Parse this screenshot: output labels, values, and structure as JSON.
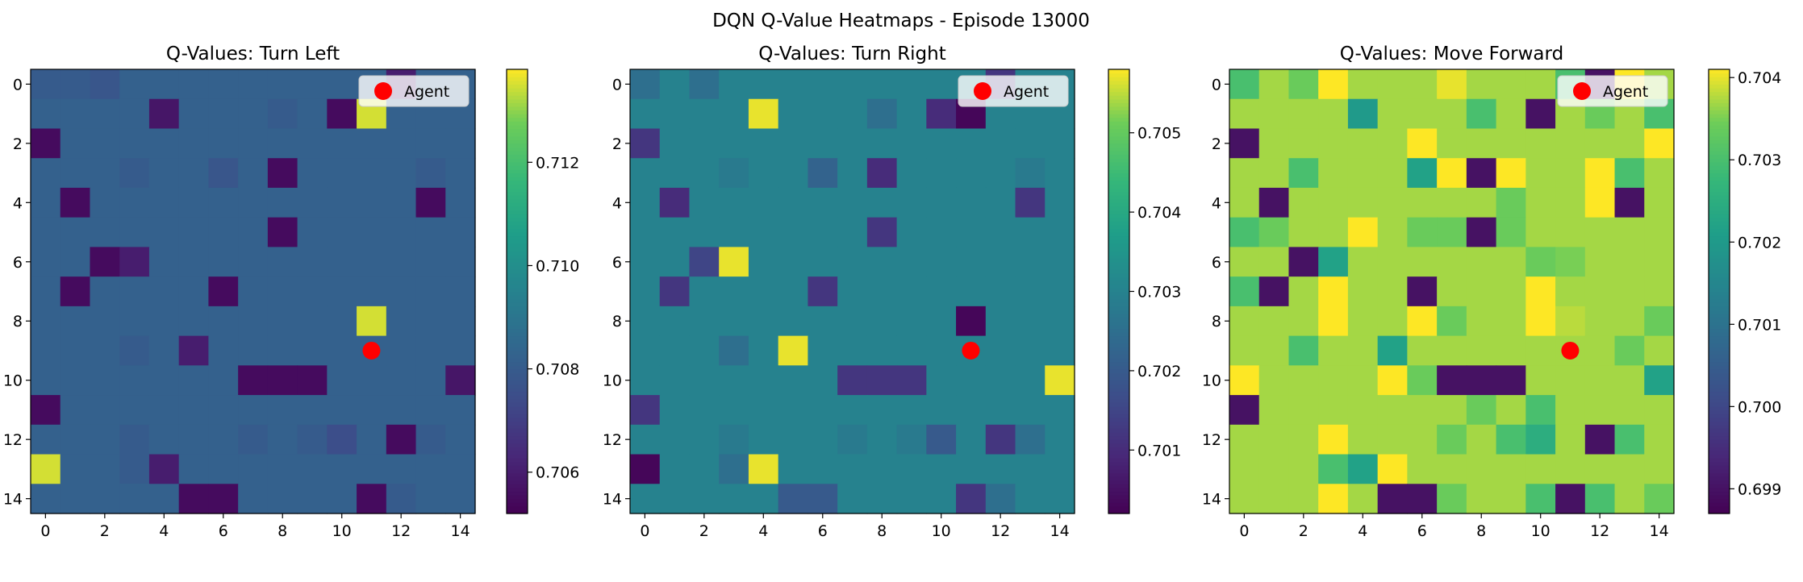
{
  "title": "DQN Q-Value Heatmaps - Episode 13000",
  "chart_data": [
    {
      "type": "heatmap",
      "title": "Q-Values: Turn Left",
      "legend": {
        "entry": "Agent",
        "placement": "top-right"
      },
      "agent": {
        "x": 11,
        "y": 9
      },
      "x_ticks": [
        "0",
        "2",
        "4",
        "6",
        "8",
        "10",
        "12",
        "14"
      ],
      "y_ticks": [
        "0",
        "2",
        "4",
        "6",
        "8",
        "10",
        "12",
        "14"
      ],
      "colorbar_ticks": [
        "0.706",
        "0.708",
        "0.710",
        "0.712"
      ],
      "colorbar_tick_values": [
        0.706,
        0.708,
        0.71,
        0.712
      ],
      "vmin": 0.7052,
      "vmax": 0.7138,
      "values": [
        [
          0.708,
          0.708,
          0.7078,
          0.7082,
          0.7082,
          0.7082,
          0.7082,
          0.7082,
          0.7082,
          0.7082,
          0.7082,
          0.7082,
          0.706,
          0.7082,
          0.7082
        ],
        [
          0.7082,
          0.7082,
          0.7082,
          0.7082,
          0.7058,
          0.7082,
          0.7082,
          0.7082,
          0.708,
          0.7082,
          0.7055,
          0.7135,
          0.7082,
          0.7082,
          0.7082
        ],
        [
          0.7055,
          0.7082,
          0.7082,
          0.7082,
          0.7082,
          0.7082,
          0.7082,
          0.7082,
          0.7082,
          0.7082,
          0.7082,
          0.7082,
          0.7082,
          0.7082,
          0.7082
        ],
        [
          0.7082,
          0.7082,
          0.7082,
          0.708,
          0.7082,
          0.7082,
          0.7078,
          0.7082,
          0.7055,
          0.7082,
          0.7082,
          0.7082,
          0.7082,
          0.708,
          0.7082
        ],
        [
          0.7082,
          0.7055,
          0.7082,
          0.7082,
          0.7082,
          0.7082,
          0.7082,
          0.7082,
          0.7082,
          0.7082,
          0.7082,
          0.7082,
          0.7082,
          0.7055,
          0.7082
        ],
        [
          0.7082,
          0.7082,
          0.7082,
          0.7082,
          0.7082,
          0.7082,
          0.7082,
          0.7082,
          0.7055,
          0.7082,
          0.7082,
          0.7082,
          0.7082,
          0.7082,
          0.7082
        ],
        [
          0.7082,
          0.7082,
          0.7055,
          0.706,
          0.7082,
          0.7082,
          0.7082,
          0.7082,
          0.7082,
          0.7082,
          0.7082,
          0.7082,
          0.7082,
          0.7082,
          0.7082
        ],
        [
          0.7082,
          0.7055,
          0.7082,
          0.7082,
          0.7082,
          0.7082,
          0.7055,
          0.7082,
          0.7082,
          0.7082,
          0.7082,
          0.7082,
          0.7082,
          0.7082,
          0.7082
        ],
        [
          0.7082,
          0.7082,
          0.7082,
          0.7082,
          0.7082,
          0.7082,
          0.7082,
          0.7082,
          0.7082,
          0.7082,
          0.7082,
          0.7135,
          0.7082,
          0.7082,
          0.7082
        ],
        [
          0.7082,
          0.7082,
          0.7082,
          0.708,
          0.7082,
          0.706,
          0.7082,
          0.7082,
          0.7082,
          0.7082,
          0.7082,
          0.7082,
          0.7082,
          0.7082,
          0.7082
        ],
        [
          0.7082,
          0.7082,
          0.7082,
          0.7082,
          0.7082,
          0.7082,
          0.7082,
          0.7055,
          0.7055,
          0.7055,
          0.7082,
          0.7082,
          0.7082,
          0.7082,
          0.7058
        ],
        [
          0.7055,
          0.7082,
          0.7082,
          0.7082,
          0.7082,
          0.7082,
          0.7082,
          0.7082,
          0.7082,
          0.7082,
          0.7082,
          0.7082,
          0.7082,
          0.7082,
          0.7082
        ],
        [
          0.7082,
          0.7082,
          0.7082,
          0.708,
          0.7082,
          0.7082,
          0.7082,
          0.708,
          0.7082,
          0.708,
          0.7075,
          0.7082,
          0.7055,
          0.708,
          0.7082
        ],
        [
          0.7135,
          0.7082,
          0.7082,
          0.708,
          0.706,
          0.7082,
          0.7082,
          0.7082,
          0.7082,
          0.7082,
          0.7082,
          0.7082,
          0.7082,
          0.7082,
          0.7082
        ],
        [
          0.7082,
          0.7082,
          0.7082,
          0.7082,
          0.7082,
          0.7055,
          0.7055,
          0.7082,
          0.7082,
          0.7082,
          0.7082,
          0.7055,
          0.708,
          0.7082,
          0.7082
        ]
      ]
    },
    {
      "type": "heatmap",
      "title": "Q-Values: Turn Right",
      "legend": {
        "entry": "Agent",
        "placement": "top-right"
      },
      "agent": {
        "x": 11,
        "y": 9
      },
      "x_ticks": [
        "0",
        "2",
        "4",
        "6",
        "8",
        "10",
        "12",
        "14"
      ],
      "y_ticks": [
        "0",
        "2",
        "4",
        "6",
        "8",
        "10",
        "12",
        "14"
      ],
      "colorbar_ticks": [
        "0.701",
        "0.702",
        "0.703",
        "0.704",
        "0.705"
      ],
      "colorbar_tick_values": [
        0.701,
        0.702,
        0.703,
        0.704,
        0.705
      ],
      "vmin": 0.7002,
      "vmax": 0.7058,
      "values": [
        [
          0.7025,
          0.703,
          0.7025,
          0.703,
          0.703,
          0.703,
          0.703,
          0.703,
          0.703,
          0.703,
          0.703,
          0.703,
          0.7012,
          0.703,
          0.703
        ],
        [
          0.703,
          0.703,
          0.703,
          0.703,
          0.7057,
          0.703,
          0.703,
          0.703,
          0.7025,
          0.703,
          0.701,
          0.7003,
          0.703,
          0.703,
          0.703
        ],
        [
          0.7012,
          0.703,
          0.703,
          0.703,
          0.703,
          0.703,
          0.703,
          0.703,
          0.703,
          0.703,
          0.703,
          0.703,
          0.703,
          0.703,
          0.703
        ],
        [
          0.703,
          0.703,
          0.703,
          0.7028,
          0.703,
          0.703,
          0.7022,
          0.703,
          0.701,
          0.703,
          0.703,
          0.703,
          0.703,
          0.7028,
          0.703
        ],
        [
          0.703,
          0.701,
          0.703,
          0.703,
          0.703,
          0.703,
          0.703,
          0.703,
          0.703,
          0.703,
          0.703,
          0.703,
          0.703,
          0.7012,
          0.703
        ],
        [
          0.703,
          0.703,
          0.703,
          0.703,
          0.703,
          0.703,
          0.703,
          0.703,
          0.7012,
          0.703,
          0.703,
          0.703,
          0.703,
          0.703,
          0.703
        ],
        [
          0.703,
          0.703,
          0.7015,
          0.7057,
          0.703,
          0.703,
          0.703,
          0.703,
          0.703,
          0.703,
          0.703,
          0.703,
          0.703,
          0.703,
          0.703
        ],
        [
          0.703,
          0.7012,
          0.703,
          0.703,
          0.703,
          0.703,
          0.7012,
          0.703,
          0.703,
          0.703,
          0.703,
          0.703,
          0.703,
          0.703,
          0.703
        ],
        [
          0.703,
          0.703,
          0.703,
          0.703,
          0.703,
          0.703,
          0.703,
          0.703,
          0.703,
          0.703,
          0.703,
          0.7003,
          0.703,
          0.703,
          0.703
        ],
        [
          0.703,
          0.703,
          0.703,
          0.7025,
          0.703,
          0.7057,
          0.703,
          0.703,
          0.703,
          0.703,
          0.703,
          0.703,
          0.703,
          0.703,
          0.703
        ],
        [
          0.703,
          0.703,
          0.703,
          0.703,
          0.703,
          0.703,
          0.703,
          0.7012,
          0.7012,
          0.7012,
          0.703,
          0.703,
          0.703,
          0.703,
          0.7057
        ],
        [
          0.7012,
          0.703,
          0.703,
          0.703,
          0.703,
          0.703,
          0.703,
          0.703,
          0.703,
          0.703,
          0.703,
          0.703,
          0.703,
          0.703,
          0.703
        ],
        [
          0.703,
          0.703,
          0.703,
          0.7028,
          0.703,
          0.703,
          0.703,
          0.7028,
          0.703,
          0.7028,
          0.702,
          0.703,
          0.7012,
          0.7025,
          0.703
        ],
        [
          0.7003,
          0.703,
          0.703,
          0.7025,
          0.7057,
          0.703,
          0.703,
          0.703,
          0.703,
          0.703,
          0.703,
          0.703,
          0.703,
          0.703,
          0.703
        ],
        [
          0.703,
          0.703,
          0.703,
          0.703,
          0.703,
          0.702,
          0.702,
          0.703,
          0.703,
          0.703,
          0.703,
          0.7012,
          0.7025,
          0.703,
          0.703
        ]
      ]
    },
    {
      "type": "heatmap",
      "title": "Q-Values: Move Forward",
      "legend": {
        "entry": "Agent",
        "placement": "top-right"
      },
      "agent": {
        "x": 11,
        "y": 9
      },
      "x_ticks": [
        "0",
        "2",
        "4",
        "6",
        "8",
        "10",
        "12",
        "14"
      ],
      "y_ticks": [
        "0",
        "2",
        "4",
        "6",
        "8",
        "10",
        "12",
        "14"
      ],
      "colorbar_ticks": [
        "0.699",
        "0.700",
        "0.701",
        "0.702",
        "0.703",
        "0.704"
      ],
      "colorbar_tick_values": [
        0.699,
        0.7,
        0.701,
        0.702,
        0.703,
        0.704
      ],
      "vmin": 0.6987,
      "vmax": 0.7041,
      "values": [
        [
          0.703,
          0.7037,
          0.7034,
          0.7041,
          0.7037,
          0.7037,
          0.7037,
          0.704,
          0.7037,
          0.7037,
          0.7037,
          0.703,
          0.699,
          0.7041,
          0.7037
        ],
        [
          0.7037,
          0.7037,
          0.7037,
          0.7037,
          0.702,
          0.7037,
          0.7037,
          0.7037,
          0.703,
          0.7037,
          0.699,
          0.7037,
          0.7034,
          0.7037,
          0.703
        ],
        [
          0.699,
          0.7037,
          0.7037,
          0.7037,
          0.7037,
          0.7037,
          0.7041,
          0.7037,
          0.7037,
          0.7037,
          0.7037,
          0.7037,
          0.7037,
          0.7037,
          0.7041
        ],
        [
          0.7037,
          0.7037,
          0.703,
          0.7037,
          0.7037,
          0.7037,
          0.7022,
          0.7041,
          0.699,
          0.7041,
          0.7037,
          0.7037,
          0.7041,
          0.703,
          0.7037
        ],
        [
          0.7037,
          0.699,
          0.7037,
          0.7037,
          0.7037,
          0.7037,
          0.7037,
          0.7037,
          0.7037,
          0.7034,
          0.7037,
          0.7037,
          0.7041,
          0.699,
          0.7037
        ],
        [
          0.703,
          0.7034,
          0.7037,
          0.7037,
          0.7041,
          0.7037,
          0.7034,
          0.7034,
          0.699,
          0.7034,
          0.7037,
          0.7037,
          0.7037,
          0.7037,
          0.7037
        ],
        [
          0.7037,
          0.7037,
          0.699,
          0.7022,
          0.7037,
          0.7037,
          0.7037,
          0.7037,
          0.7037,
          0.7037,
          0.7034,
          0.7035,
          0.7037,
          0.7037,
          0.7037
        ],
        [
          0.703,
          0.699,
          0.7037,
          0.7041,
          0.7037,
          0.7037,
          0.699,
          0.7037,
          0.7037,
          0.7037,
          0.7041,
          0.7037,
          0.7037,
          0.7037,
          0.7037
        ],
        [
          0.7037,
          0.7037,
          0.7037,
          0.7041,
          0.7037,
          0.7037,
          0.7041,
          0.7034,
          0.7037,
          0.7037,
          0.7041,
          0.7038,
          0.7037,
          0.7037,
          0.7034
        ],
        [
          0.7037,
          0.7037,
          0.703,
          0.7037,
          0.7037,
          0.7022,
          0.7037,
          0.7037,
          0.7037,
          0.7037,
          0.7037,
          0.7037,
          0.7037,
          0.7034,
          0.7037
        ],
        [
          0.7041,
          0.7037,
          0.7037,
          0.7037,
          0.7037,
          0.7041,
          0.7034,
          0.699,
          0.699,
          0.699,
          0.7037,
          0.7037,
          0.7037,
          0.7037,
          0.7022
        ],
        [
          0.699,
          0.7037,
          0.7037,
          0.7037,
          0.7037,
          0.7037,
          0.7037,
          0.7037,
          0.7034,
          0.7037,
          0.703,
          0.7037,
          0.7037,
          0.7037,
          0.7037
        ],
        [
          0.7037,
          0.7037,
          0.7037,
          0.7041,
          0.7037,
          0.7037,
          0.7037,
          0.7034,
          0.7037,
          0.703,
          0.7025,
          0.7037,
          0.699,
          0.703,
          0.7037
        ],
        [
          0.7037,
          0.7037,
          0.7037,
          0.703,
          0.7022,
          0.7041,
          0.7037,
          0.7037,
          0.7037,
          0.7037,
          0.7037,
          0.7037,
          0.7037,
          0.7037,
          0.7037
        ],
        [
          0.7037,
          0.7037,
          0.7037,
          0.7041,
          0.7037,
          0.699,
          0.699,
          0.7034,
          0.7037,
          0.7037,
          0.703,
          0.699,
          0.703,
          0.7037,
          0.7034
        ]
      ]
    }
  ]
}
